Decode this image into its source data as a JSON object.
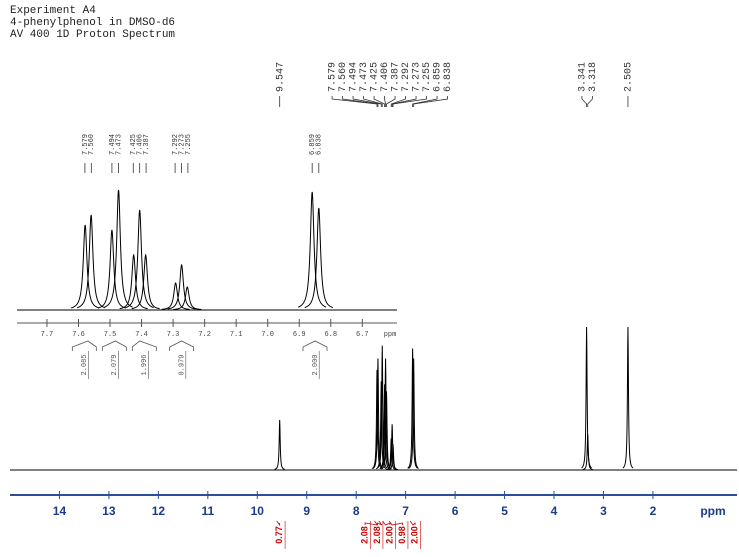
{
  "chart_data": [
    {
      "type": "spectrum",
      "title_lines": [
        "Experiment A4",
        "4-phenylphenol  in DMSO-d6",
        "AV 400 1D Proton Spectrum"
      ],
      "xlabel": "ppm",
      "xlim": [
        15,
        0.3
      ],
      "xticks": [
        14,
        13,
        12,
        11,
        10,
        9,
        8,
        7,
        6,
        5,
        4,
        3,
        2
      ],
      "ylim": [
        0,
        100
      ],
      "color": "#000000",
      "axis_color": "#2b4d9b",
      "peaks": {
        "x": [
          9.547,
          7.579,
          7.56,
          7.494,
          7.473,
          7.425,
          7.406,
          7.387,
          7.292,
          7.273,
          7.255,
          6.859,
          6.838,
          3.341,
          3.318,
          2.505
        ],
        "values": [
          35,
          70,
          78,
          62,
          87,
          60,
          78,
          55,
          22,
          32,
          18,
          85,
          78,
          100,
          25,
          100
        ],
        "peak_labels": [
          "9.547",
          "7.579",
          "7.560",
          "7.494",
          "7.473",
          "7.425",
          "7.406",
          "7.387",
          "7.292",
          "7.273",
          "7.255",
          "6.859",
          "6.838",
          "3.341",
          "3.318",
          "2.505"
        ]
      },
      "integrals": {
        "x": [
          9.547,
          7.57,
          7.48,
          7.406,
          7.273,
          6.85
        ],
        "values": [
          0.77,
          2.08,
          2.08,
          2,
          0.98,
          2
        ],
        "value_labels": [
          "0.77",
          "2.08",
          "2.08",
          "2.00",
          "0.98",
          "2.00"
        ],
        "color": "#cc0000"
      }
    },
    {
      "type": "spectrum",
      "xlim": [
        7.795,
        6.59
      ],
      "xticks": [
        7.7,
        7.6,
        7.5,
        7.4,
        7.3,
        7.2,
        7.1,
        {
          "value": 7.0,
          "label": "7.0"
        },
        6.9,
        6.8,
        6.7
      ],
      "xlabel": "ppm",
      "ylim": [
        0,
        130
      ],
      "color": "#000000",
      "axis_color": "#555555",
      "peaks": {
        "x": [
          7.579,
          7.56,
          7.494,
          7.473,
          7.425,
          7.406,
          7.387,
          7.292,
          7.273,
          7.255,
          6.859,
          6.838
        ],
        "values": [
          85,
          95,
          80,
          120,
          55,
          100,
          55,
          27,
          45,
          23,
          118,
          102
        ],
        "peak_labels": [
          "7.579",
          "7.560",
          "7.494",
          "7.473",
          "7.425",
          "7.406",
          "7.387",
          "7.292",
          "7.273",
          "7.255",
          "6.859",
          "6.838"
        ]
      },
      "integrals": {
        "x": [
          7.57,
          7.483,
          7.406,
          7.273,
          6.85
        ],
        "values": [
          2.085,
          2.079,
          1.996,
          0.979,
          2
        ],
        "value_labels": [
          "2.085",
          "2.079",
          "1.996",
          "0.979",
          "2.000"
        ],
        "color": "#555555"
      }
    }
  ]
}
